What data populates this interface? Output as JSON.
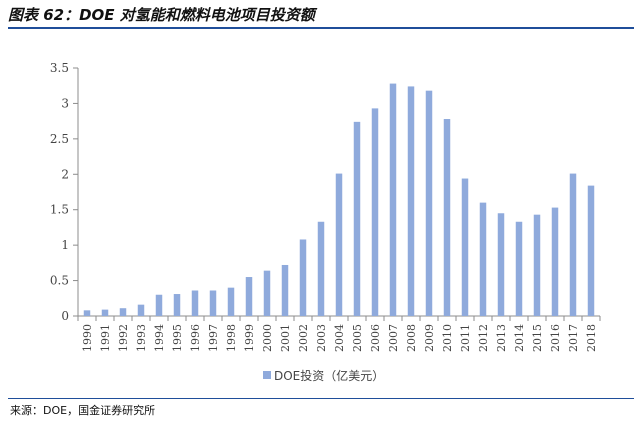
{
  "header": {
    "title": "图表 62：DOE 对氢能和燃料电池项目投资额"
  },
  "footer": {
    "source": "来源：DOE，国金证券研究所"
  },
  "colors": {
    "bar": "#8faadc",
    "axis": "#8c8c8c",
    "rule": "#1f4e9a"
  },
  "chart_data": {
    "type": "bar",
    "title": "",
    "xlabel": "",
    "ylabel": "",
    "ylim": [
      0,
      3.5
    ],
    "y_ticks": [
      "0",
      "0.5",
      "1",
      "1.5",
      "2",
      "2.5",
      "3",
      "3.5"
    ],
    "grid": false,
    "legend_position": "bottom",
    "categories": [
      "1990",
      "1991",
      "1992",
      "1993",
      "1994",
      "1995",
      "1996",
      "1997",
      "1998",
      "1999",
      "2000",
      "2001",
      "2002",
      "2003",
      "2004",
      "2005",
      "2006",
      "2007",
      "2008",
      "2009",
      "2010",
      "2011",
      "2012",
      "2013",
      "2014",
      "2015",
      "2016",
      "2017",
      "2018"
    ],
    "series": [
      {
        "name": "DOE投资（亿美元）",
        "values": [
          0.08,
          0.09,
          0.11,
          0.16,
          0.3,
          0.31,
          0.36,
          0.36,
          0.4,
          0.55,
          0.64,
          0.72,
          1.08,
          1.33,
          2.01,
          2.74,
          2.93,
          3.28,
          3.24,
          3.18,
          2.78,
          1.94,
          1.6,
          1.45,
          1.33,
          1.43,
          1.53,
          2.01,
          1.84
        ]
      }
    ]
  }
}
